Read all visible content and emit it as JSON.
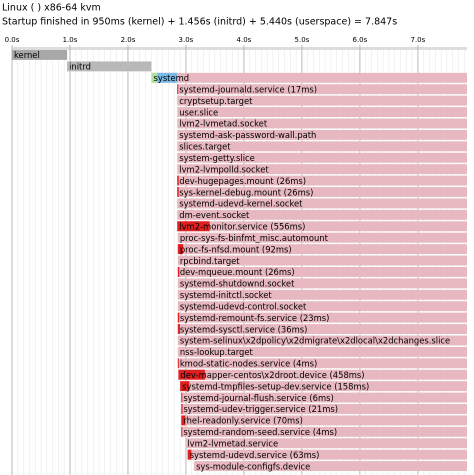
{
  "chart_data": {
    "type": "timeline",
    "title": "Linux ( ) x86-64 kvm",
    "subtitle": "Startup finished in 950ms (kernel) + 1.456s (initrd) + 5.440s (userspace) = 7.847s",
    "xlim": [
      0,
      7.847
    ],
    "xticks": [
      {
        "value": 0,
        "label": "0.0s"
      },
      {
        "value": 1,
        "label": "1.0s"
      },
      {
        "value": 2,
        "label": "2.0s"
      },
      {
        "value": 3,
        "label": "3.0s"
      },
      {
        "value": 4,
        "label": "4.0s"
      },
      {
        "value": 5,
        "label": "5.0s"
      },
      {
        "value": 6,
        "label": "6.0s"
      },
      {
        "value": 7,
        "label": "7.0s"
      }
    ],
    "minor_grid_step": 0.1,
    "colors": {
      "kernel": "#a8a8a8",
      "initrd": "#b8b8b8",
      "active": "#e8b8c0",
      "activating": "#e02020",
      "loading": "#b0e0a0",
      "setup": "#7ab8e8"
    },
    "stages": [
      {
        "name": "kernel",
        "start": 0,
        "duration": 0.95,
        "kind": "kernel"
      },
      {
        "name": "initrd",
        "start": 0.95,
        "duration": 1.456,
        "kind": "initrd"
      }
    ],
    "systemd": {
      "name": "systemd",
      "start": 2.406,
      "loading": 0.1,
      "setup": 0.34
    },
    "tasks": [
      {
        "name": "systemd-journald.service (17ms)",
        "start": 2.85,
        "activating": 0.017
      },
      {
        "name": "cryptsetup.target",
        "start": 2.85
      },
      {
        "name": "user.slice",
        "start": 2.85
      },
      {
        "name": "lvm2-lvmetad.socket",
        "start": 2.85
      },
      {
        "name": "systemd-ask-password-wall.path",
        "start": 2.85
      },
      {
        "name": "slices.target",
        "start": 2.85
      },
      {
        "name": "system-getty.slice",
        "start": 2.85
      },
      {
        "name": "lvm2-lvmpolld.socket",
        "start": 2.85
      },
      {
        "name": "dev-hugepages.mount (26ms)",
        "start": 2.85,
        "activating": 0.026
      },
      {
        "name": "sys-kernel-debug.mount (26ms)",
        "start": 2.85,
        "activating": 0.026
      },
      {
        "name": "systemd-udevd-kernel.socket",
        "start": 2.85
      },
      {
        "name": "dm-event.socket",
        "start": 2.85
      },
      {
        "name": "lvm2-monitor.service (556ms)",
        "start": 2.85,
        "activating": 0.556
      },
      {
        "name": "proc-sys-fs-binfmt_misc.automount",
        "start": 2.86
      },
      {
        "name": "proc-fs-nfsd.mount (92ms)",
        "start": 2.86,
        "activating": 0.092
      },
      {
        "name": "rpcbind.target",
        "start": 2.86
      },
      {
        "name": "dev-mqueue.mount (26ms)",
        "start": 2.86,
        "activating": 0.026
      },
      {
        "name": "systemd-shutdownd.socket",
        "start": 2.86
      },
      {
        "name": "systemd-initctl.socket",
        "start": 2.86
      },
      {
        "name": "systemd-udevd-control.socket",
        "start": 2.86
      },
      {
        "name": "systemd-remount-fs.service (23ms)",
        "start": 2.86,
        "activating": 0.023
      },
      {
        "name": "systemd-sysctl.service (36ms)",
        "start": 2.86,
        "activating": 0.036
      },
      {
        "name": "system-selinux\\x2dpolicy\\x2dmigrate\\x2dlocal\\x2dchanges.slice",
        "start": 2.86
      },
      {
        "name": "nss-lookup.target",
        "start": 2.86
      },
      {
        "name": "kmod-static-nodes.service (4ms)",
        "start": 2.86,
        "activating": 0.004
      },
      {
        "name": "dev-mapper-centos\\x2droot.device (458ms)",
        "start": 2.87,
        "activating": 0.458
      },
      {
        "name": "systemd-tmpfiles-setup-dev.service (158ms)",
        "start": 2.9,
        "activating": 0.158
      },
      {
        "name": "systemd-journal-flush.service (6ms)",
        "start": 2.92,
        "activating": 0.006
      },
      {
        "name": "systemd-udev-trigger.service (21ms)",
        "start": 2.92,
        "activating": 0.021
      },
      {
        "name": "rhel-readonly.service (70ms)",
        "start": 2.92,
        "activating": 0.07
      },
      {
        "name": "systemd-random-seed.service (4ms)",
        "start": 2.92,
        "activating": 0.004
      },
      {
        "name": "lvm2-lvmetad.service",
        "start": 2.99
      },
      {
        "name": "systemd-udevd.service (63ms)",
        "start": 3.03,
        "activating": 0.063
      },
      {
        "name": "sys-module-configfs.device",
        "start": 3.14
      }
    ]
  }
}
